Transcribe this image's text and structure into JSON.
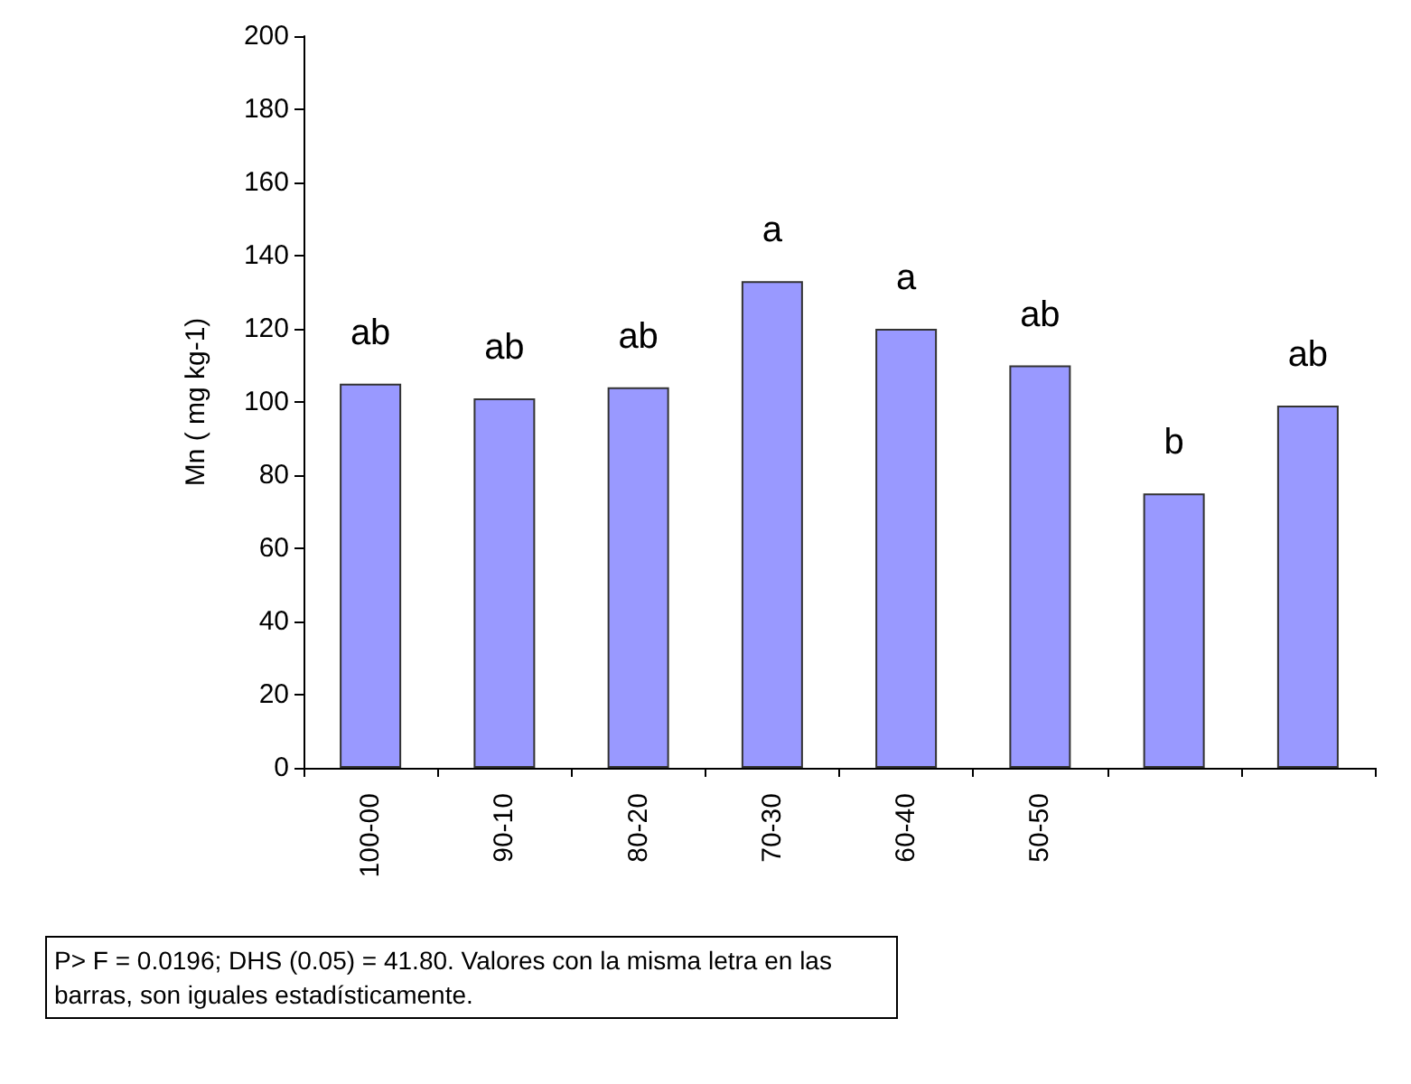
{
  "chart_data": {
    "type": "bar",
    "ylabel": "Mn ( mg kg-1)",
    "categories": [
      "100-00",
      "90-10",
      "80-20",
      "70-30",
      "60-40",
      "50-50",
      null,
      null
    ],
    "values": [
      105,
      101,
      104,
      133,
      120,
      110,
      75,
      99
    ],
    "value_labels": [
      "ab",
      "ab",
      "ab",
      "a",
      "a",
      "ab",
      "b",
      "ab"
    ],
    "color": "#9999ff",
    "ylim": [
      0,
      200
    ],
    "yticks": [
      0,
      20,
      40,
      60,
      80,
      100,
      120,
      140,
      160,
      180,
      200
    ],
    "grid": false,
    "annotations": [
      "P> F = 0.0196; DHS (0.05) = 41.80. Valores con la misma letra en las barras, son iguales estadísticamente."
    ]
  }
}
